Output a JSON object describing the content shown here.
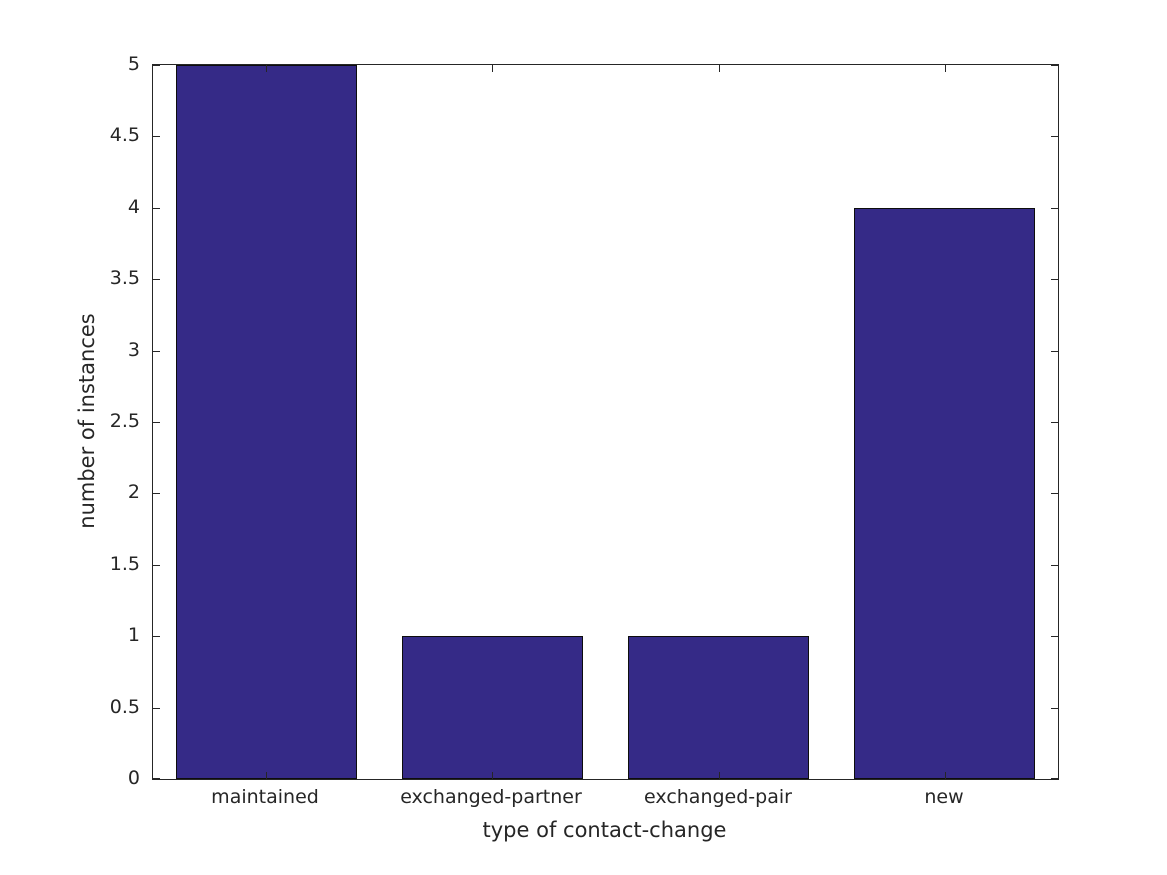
{
  "chart_data": {
    "type": "bar",
    "title": "",
    "categories": [
      "maintained",
      "exchanged-partner",
      "exchanged-pair",
      "new"
    ],
    "values": [
      5,
      1,
      1,
      4
    ],
    "xlabel": "type of contact-change",
    "ylabel": "number of instances",
    "xlim": [
      0.5,
      4.5
    ],
    "ylim": [
      0,
      5
    ],
    "yticks": [
      0,
      0.5,
      1,
      1.5,
      2,
      2.5,
      3,
      3.5,
      4,
      4.5,
      5
    ],
    "ytick_labels": [
      "0",
      "0.5",
      "1",
      "1.5",
      "2",
      "2.5",
      "3",
      "3.5",
      "4",
      "4.5",
      "5"
    ],
    "bar_width_fraction": 0.8,
    "grid": false,
    "legend": null,
    "colors": {
      "bar_fill": "#352A87",
      "bar_edge": "#0d0d0d",
      "axis": "#262626",
      "text": "#262626",
      "background": "#ffffff"
    }
  }
}
